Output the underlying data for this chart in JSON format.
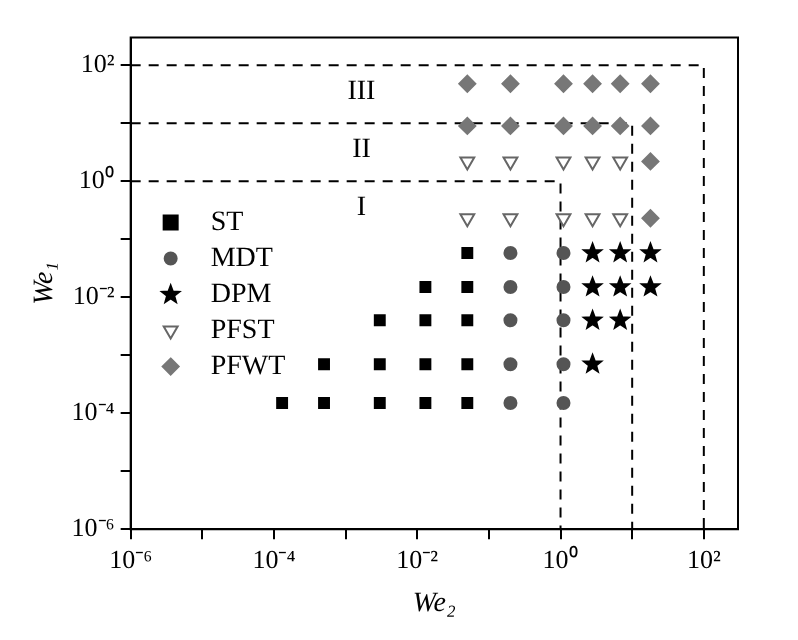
{
  "chart_data": {
    "type": "scatter",
    "xlabel": "We₂",
    "ylabel": "We₁",
    "log": "xy",
    "grid": false,
    "legend": "left",
    "xlim": [
      1e-06,
      300
    ],
    "ylim": [
      1e-06,
      300
    ],
    "xticks": [
      {
        "value": 1e-06,
        "label": "10⁻⁶"
      },
      {
        "value": 1e-05,
        "label": null
      },
      {
        "value": 0.0001,
        "label": "10⁻⁴"
      },
      {
        "value": 0.001,
        "label": null
      },
      {
        "value": 0.01,
        "label": "10⁻²"
      },
      {
        "value": 0.1,
        "label": null
      },
      {
        "value": 1,
        "label": "10⁰"
      },
      {
        "value": 10,
        "label": null
      },
      {
        "value": 100,
        "label": "10²"
      }
    ],
    "yticks": [
      {
        "value": 1e-06,
        "label": "10⁻⁶"
      },
      {
        "value": 1e-05,
        "label": null
      },
      {
        "value": 0.0001,
        "label": "10⁻⁴"
      },
      {
        "value": 0.001,
        "label": null
      },
      {
        "value": 0.01,
        "label": "10⁻²"
      },
      {
        "value": 0.1,
        "label": null
      },
      {
        "value": 1,
        "label": "10⁰"
      },
      {
        "value": 10,
        "label": null
      },
      {
        "value": 100,
        "label": "10²"
      }
    ],
    "annotations": [
      "III",
      "II",
      "I"
    ],
    "series": [
      {
        "name": "ST",
        "color": "#000000",
        "marker": "square",
        "x": [
          0.00013,
          0.0005,
          0.003,
          0.013,
          0.05,
          0.0005,
          0.003,
          0.013,
          0.05,
          0.003,
          0.013,
          0.05,
          0.013,
          0.05,
          0.05
        ],
        "values": [
          0.00015,
          0.00015,
          0.00015,
          0.00015,
          0.00015,
          0.0007,
          0.0007,
          0.0007,
          0.0007,
          0.004,
          0.004,
          0.004,
          0.015,
          0.015,
          0.058
        ]
      },
      {
        "name": "MDT",
        "color": "#555555",
        "marker": "circle",
        "x": [
          0.2,
          0.2,
          0.2,
          0.2,
          0.2,
          1.1,
          1.1,
          1.1,
          1.1,
          1.1
        ],
        "values": [
          0.00015,
          0.0007,
          0.004,
          0.015,
          0.058,
          0.00015,
          0.0007,
          0.004,
          0.015,
          0.058
        ]
      },
      {
        "name": "DPM",
        "color": "#000000",
        "marker": "star",
        "x": [
          2.8,
          6.8,
          18,
          2.8,
          6.8,
          18,
          2.8,
          6.8,
          2.8
        ],
        "values": [
          0.058,
          0.058,
          0.058,
          0.015,
          0.015,
          0.015,
          0.004,
          0.004,
          0.0007
        ]
      },
      {
        "name": "PFST",
        "color": "#666666",
        "marker": "triangle",
        "x": [
          0.05,
          0.2,
          1.1,
          2.8,
          6.8,
          0.05,
          0.2,
          1.1,
          2.8,
          6.8
        ],
        "values": [
          0.23,
          0.23,
          0.23,
          0.23,
          0.23,
          2.2,
          2.2,
          2.2,
          2.2,
          2.2
        ]
      },
      {
        "name": "PFWT",
        "color": "#777777",
        "marker": "diamond",
        "x": [
          0.05,
          0.2,
          1.1,
          2.8,
          6.8,
          18,
          0.05,
          0.2,
          1.1,
          2.8,
          6.8,
          18,
          18,
          18
        ],
        "values": [
          48,
          48,
          48,
          48,
          48,
          48,
          9,
          9,
          9,
          9,
          9,
          9,
          2.2,
          0.23
        ]
      },
      {
        "type": "line",
        "color": "#000000",
        "line_style": "dashed",
        "marker": "none",
        "x": [
          1e-06,
          100,
          100
        ],
        "values": [
          100,
          100,
          1e-06
        ]
      },
      {
        "type": "line",
        "color": "#000000",
        "line_style": "dashed",
        "marker": "none",
        "x": [
          1e-06,
          10,
          10
        ],
        "values": [
          10,
          10,
          1e-06
        ]
      },
      {
        "type": "line",
        "color": "#000000",
        "line_style": "dashed",
        "marker": "none",
        "x": [
          1e-06,
          1,
          1
        ],
        "values": [
          1,
          1,
          1e-06
        ]
      }
    ]
  }
}
